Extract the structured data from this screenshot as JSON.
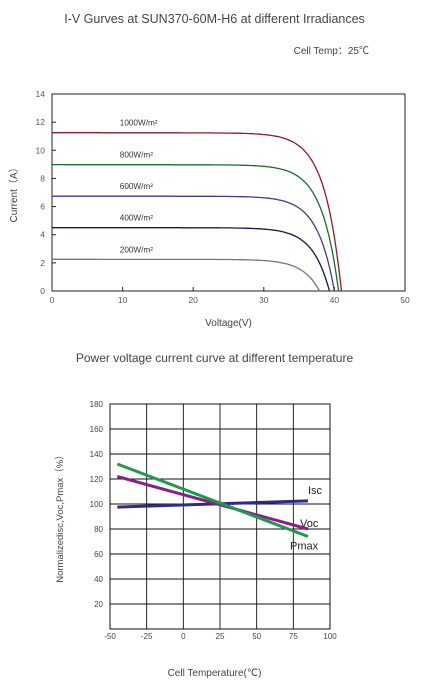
{
  "chart_data": [
    {
      "type": "line",
      "title": "I-V Gurves at SUN370-60M-H6 at different Irradiances",
      "subtitle": "Cell Temp：25℃",
      "xlabel": "Voltage(V)",
      "ylabel": "Current（A）",
      "xlim": [
        0,
        50
      ],
      "ylim": [
        0,
        14
      ],
      "xticks": [
        "0",
        "10",
        "20",
        "30",
        "40",
        "50"
      ],
      "yticks": [
        "0",
        "2",
        "4",
        "6",
        "8",
        "10",
        "12",
        "14"
      ],
      "grid": false,
      "series": [
        {
          "name": "1000W/m²",
          "color": "#8e1c2a",
          "isc": 11.25,
          "voc": 41.0,
          "knee_v": 31.0,
          "knee_i": 11.05
        },
        {
          "name": "800W/m²",
          "color": "#1f6b30",
          "isc": 8.98,
          "voc": 40.6,
          "knee_v": 30.5,
          "knee_i": 8.8
        },
        {
          "name": "600W/m²",
          "color": "#3d3f8c",
          "isc": 6.74,
          "voc": 40.0,
          "knee_v": 30.0,
          "knee_i": 6.6
        },
        {
          "name": "400W/m²",
          "color": "#101c40",
          "isc": 4.5,
          "voc": 39.3,
          "knee_v": 30.0,
          "knee_i": 4.4
        },
        {
          "name": "200W/m²",
          "color": "#777777",
          "isc": 2.25,
          "voc": 37.9,
          "knee_v": 30.0,
          "knee_i": 2.2
        }
      ]
    },
    {
      "type": "line",
      "title": "Power voltage current curve at different temperature",
      "xlabel": "Cell Temperature(℃)",
      "ylabel": "Normalizedisc,Voc,Pmax（%）",
      "xlim": [
        -50,
        100
      ],
      "ylim": [
        0,
        180
      ],
      "xticks": [
        "-50",
        "-25",
        "0",
        "25",
        "50",
        "75",
        "100"
      ],
      "yticks": [
        "20",
        "40",
        "60",
        "80",
        "100",
        "120",
        "140",
        "160",
        "180"
      ],
      "grid": true,
      "series": [
        {
          "name": "Isc",
          "color": "#2d2a8e",
          "x": [
            -45,
            85
          ],
          "y": [
            97.5,
            102.5
          ]
        },
        {
          "name": "Voc",
          "color": "#8a1f8a",
          "x": [
            -45,
            85
          ],
          "y": [
            122,
            80
          ]
        },
        {
          "name": "Pmax",
          "color": "#1f9a4a",
          "x": [
            -45,
            85
          ],
          "y": [
            132,
            74
          ]
        }
      ]
    }
  ]
}
